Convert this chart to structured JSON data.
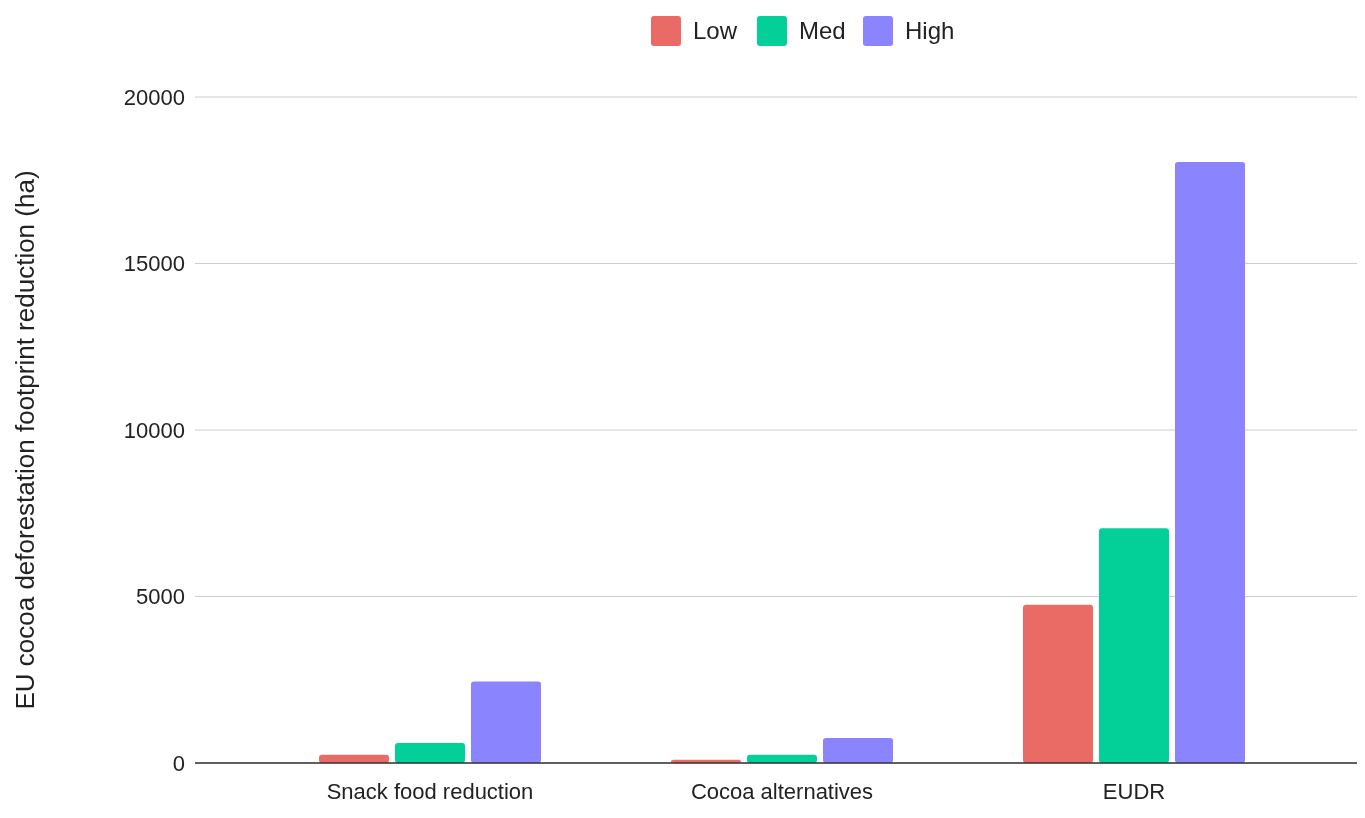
{
  "chart_data": {
    "type": "bar",
    "ylabel": "EU cocoa deforestation footprint reduction (ha)",
    "categories": [
      "Snack food reduction",
      "Cocoa alternatives",
      "EUDR"
    ],
    "series": [
      {
        "name": "Low",
        "color": "#ea6b66",
        "values": [
          250,
          100,
          4750
        ]
      },
      {
        "name": "Med",
        "color": "#03cf98",
        "values": [
          600,
          250,
          7050
        ]
      },
      {
        "name": "High",
        "color": "#8a84fe",
        "values": [
          2450,
          750,
          18050
        ]
      }
    ],
    "ylim": [
      0,
      20000
    ],
    "yticks": [
      0,
      5000,
      10000,
      15000,
      20000
    ],
    "grid": "y",
    "legend": "top"
  }
}
